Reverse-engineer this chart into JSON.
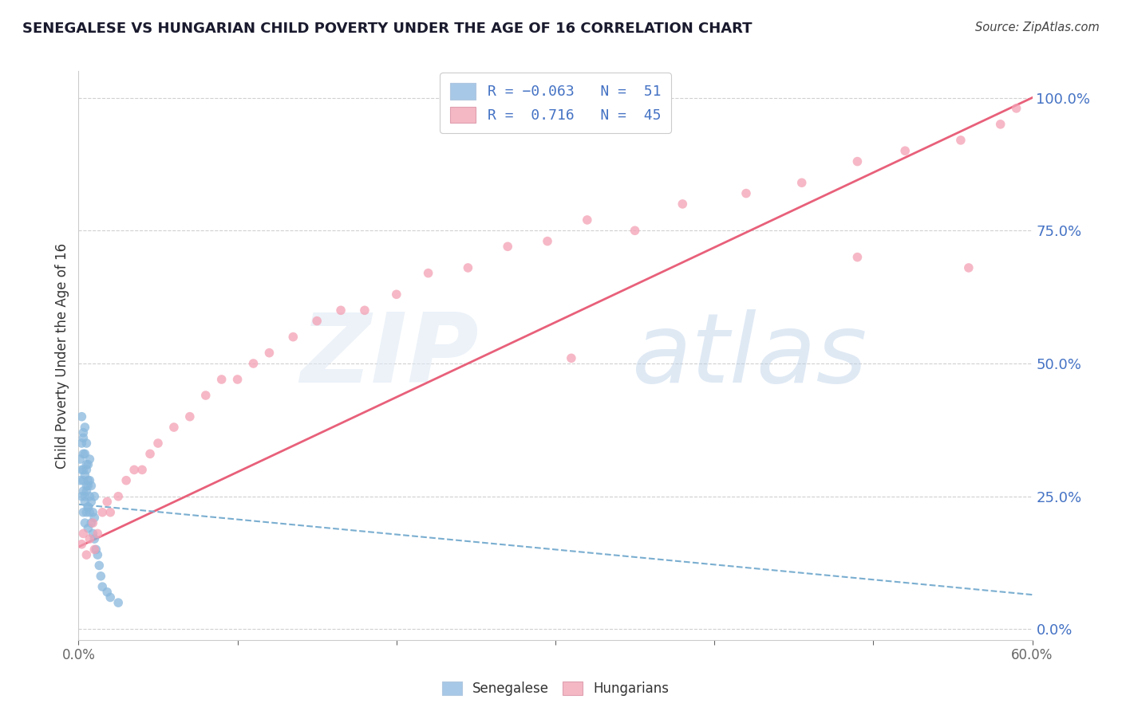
{
  "title": "SENEGALESE VS HUNGARIAN CHILD POVERTY UNDER THE AGE OF 16 CORRELATION CHART",
  "source": "Source: ZipAtlas.com",
  "ylabel": "Child Poverty Under the Age of 16",
  "xlim": [
    0.0,
    0.6
  ],
  "ylim": [
    -0.02,
    1.05
  ],
  "yticks": [
    0.0,
    0.25,
    0.5,
    0.75,
    1.0
  ],
  "ytick_labels": [
    "0.0%",
    "25.0%",
    "50.0%",
    "75.0%",
    "100.0%"
  ],
  "xticks": [
    0.0,
    0.1,
    0.2,
    0.3,
    0.4,
    0.5,
    0.6
  ],
  "xtick_labels": [
    "0.0%",
    "",
    "",
    "",
    "",
    "",
    "60.0%"
  ],
  "senegalese_color": "#89b8dd",
  "hungarian_color": "#f4a0b4",
  "trend_senegalese_color": "#7aaed0",
  "trend_hungarian_color": "#e8607a",
  "background_color": "#ffffff",
  "grid_color": "#d0d0d0",
  "legend_blue_color": "#a8c8e8",
  "legend_pink_color": "#f4b8c4",
  "watermark_zip_color": "#dde8f0",
  "watermark_atlas_color": "#c8dce8",
  "axis_label_color": "#4472c4",
  "title_color": "#1a1a2e",
  "source_color": "#444444",
  "senegalese_x": [
    0.001,
    0.001,
    0.002,
    0.002,
    0.002,
    0.002,
    0.003,
    0.003,
    0.003,
    0.003,
    0.003,
    0.003,
    0.003,
    0.004,
    0.004,
    0.004,
    0.004,
    0.004,
    0.004,
    0.005,
    0.005,
    0.005,
    0.005,
    0.005,
    0.005,
    0.006,
    0.006,
    0.006,
    0.006,
    0.006,
    0.006,
    0.007,
    0.007,
    0.007,
    0.007,
    0.008,
    0.008,
    0.008,
    0.009,
    0.009,
    0.01,
    0.01,
    0.01,
    0.011,
    0.012,
    0.013,
    0.014,
    0.015,
    0.018,
    0.02,
    0.025
  ],
  "senegalese_y": [
    0.28,
    0.32,
    0.25,
    0.3,
    0.35,
    0.4,
    0.28,
    0.33,
    0.37,
    0.22,
    0.26,
    0.3,
    0.36,
    0.25,
    0.29,
    0.33,
    0.38,
    0.2,
    0.24,
    0.27,
    0.31,
    0.35,
    0.22,
    0.26,
    0.3,
    0.23,
    0.27,
    0.31,
    0.19,
    0.23,
    0.28,
    0.22,
    0.25,
    0.28,
    0.32,
    0.2,
    0.24,
    0.27,
    0.18,
    0.22,
    0.17,
    0.21,
    0.25,
    0.15,
    0.14,
    0.12,
    0.1,
    0.08,
    0.07,
    0.06,
    0.05
  ],
  "hungarian_x": [
    0.002,
    0.003,
    0.005,
    0.007,
    0.009,
    0.01,
    0.012,
    0.015,
    0.018,
    0.02,
    0.025,
    0.03,
    0.035,
    0.04,
    0.045,
    0.05,
    0.06,
    0.07,
    0.08,
    0.09,
    0.1,
    0.11,
    0.12,
    0.135,
    0.15,
    0.165,
    0.18,
    0.2,
    0.22,
    0.245,
    0.27,
    0.295,
    0.32,
    0.35,
    0.38,
    0.42,
    0.455,
    0.49,
    0.52,
    0.555,
    0.58,
    0.59,
    0.31,
    0.49,
    0.56
  ],
  "hungarian_y": [
    0.16,
    0.18,
    0.14,
    0.17,
    0.2,
    0.15,
    0.18,
    0.22,
    0.24,
    0.22,
    0.25,
    0.28,
    0.3,
    0.3,
    0.33,
    0.35,
    0.38,
    0.4,
    0.44,
    0.47,
    0.47,
    0.5,
    0.52,
    0.55,
    0.58,
    0.6,
    0.6,
    0.63,
    0.67,
    0.68,
    0.72,
    0.73,
    0.77,
    0.75,
    0.8,
    0.82,
    0.84,
    0.88,
    0.9,
    0.92,
    0.95,
    0.98,
    0.51,
    0.7,
    0.68
  ],
  "hun_trend_x0": 0.0,
  "hun_trend_y0": 0.155,
  "hun_trend_x1": 0.6,
  "hun_trend_y1": 1.0,
  "sen_trend_x0": 0.0,
  "sen_trend_y0": 0.235,
  "sen_trend_x1": 0.6,
  "sen_trend_y1": 0.065
}
